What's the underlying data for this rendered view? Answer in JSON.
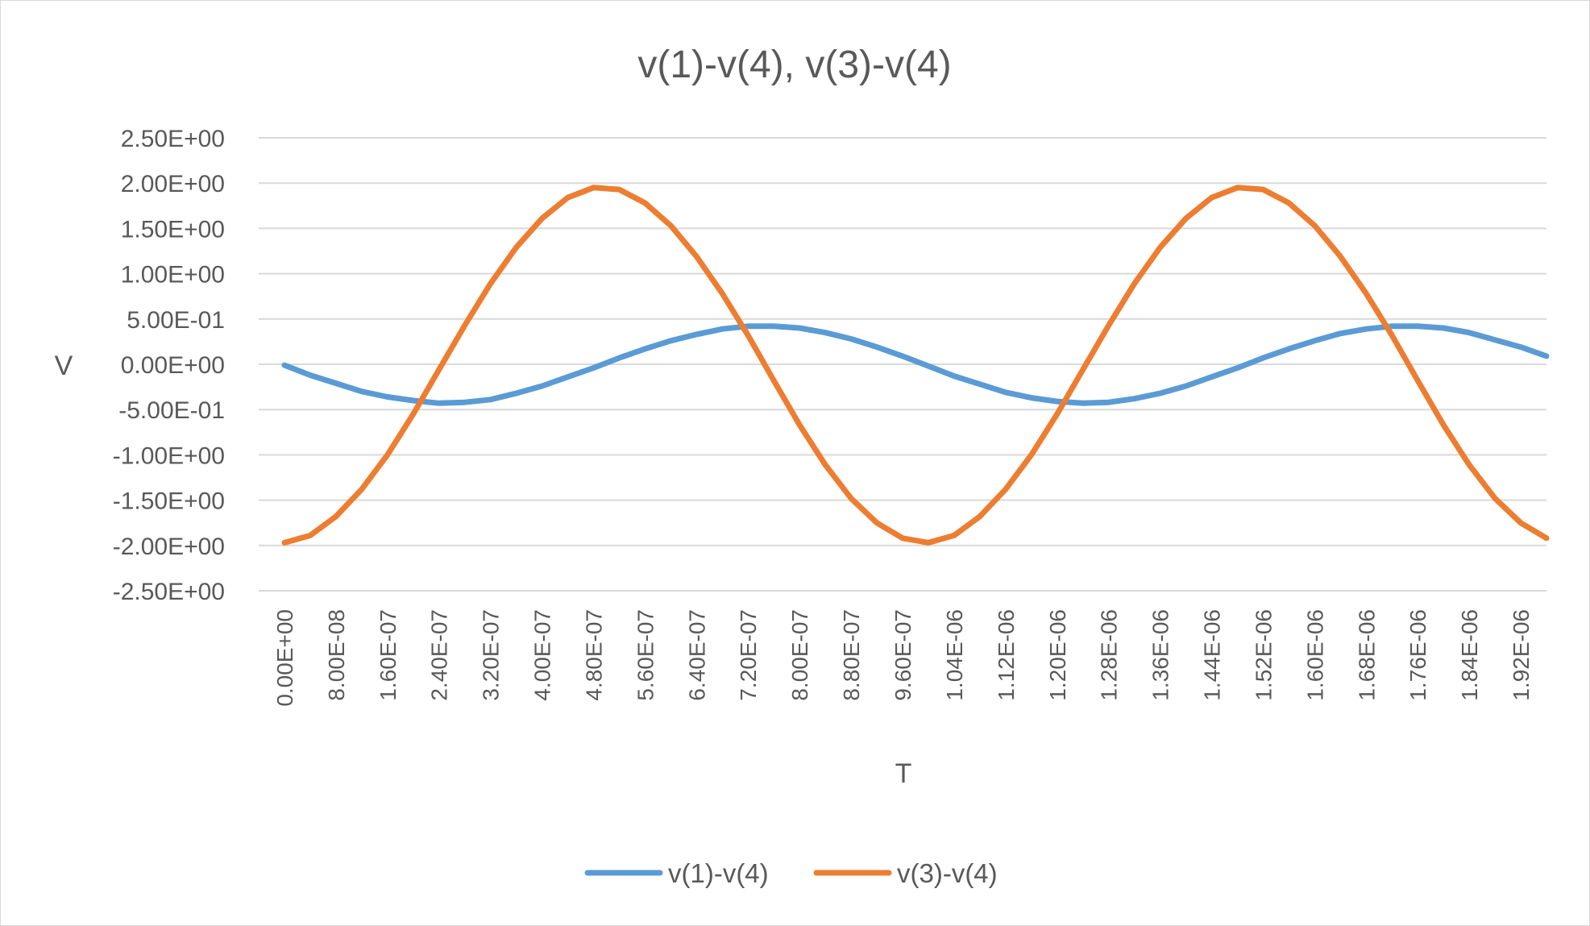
{
  "chart_data": {
    "type": "line",
    "title": "v(1)-v(4), v(3)-v(4)",
    "xlabel": "T",
    "ylabel": "V",
    "ylim": [
      -2.5,
      2.5
    ],
    "y_ticks": [
      "2.50E+00",
      "2.00E+00",
      "1.50E+00",
      "1.00E+00",
      "5.00E-01",
      "0.00E+00",
      "-5.00E-01",
      "-1.00E+00",
      "-1.50E+00",
      "-2.00E+00",
      "-2.50E+00"
    ],
    "y_tick_values": [
      2.5,
      2.0,
      1.5,
      1.0,
      0.5,
      0.0,
      -0.5,
      -1.0,
      -1.5,
      -2.0,
      -2.5
    ],
    "x_tick_labels": [
      "0.00E+00",
      "8.00E-08",
      "1.60E-07",
      "2.40E-07",
      "3.20E-07",
      "4.00E-07",
      "4.80E-07",
      "5.60E-07",
      "6.40E-07",
      "7.20E-07",
      "8.00E-07",
      "8.80E-07",
      "9.60E-07",
      "1.04E-06",
      "1.12E-06",
      "1.20E-06",
      "1.28E-06",
      "1.36E-06",
      "1.44E-06",
      "1.52E-06",
      "1.60E-06",
      "1.68E-06",
      "1.76E-06",
      "1.84E-06",
      "1.92E-06"
    ],
    "x": [
      0,
      4e-08,
      8e-08,
      1.2e-07,
      1.6e-07,
      2e-07,
      2.4e-07,
      2.8e-07,
      3.2e-07,
      3.6e-07,
      4e-07,
      4.4e-07,
      4.8e-07,
      5.2e-07,
      5.6e-07,
      6e-07,
      6.4e-07,
      6.8e-07,
      7.2e-07,
      7.6e-07,
      8e-07,
      8.4e-07,
      8.8e-07,
      9.2e-07,
      9.6e-07,
      1e-06,
      1.04e-06,
      1.08e-06,
      1.12e-06,
      1.16e-06,
      1.2e-06,
      1.24e-06,
      1.28e-06,
      1.32e-06,
      1.36e-06,
      1.4e-06,
      1.44e-06,
      1.48e-06,
      1.52e-06,
      1.56e-06,
      1.6e-06,
      1.64e-06,
      1.68e-06,
      1.72e-06,
      1.76e-06,
      1.8e-06,
      1.84e-06,
      1.88e-06,
      1.92e-06,
      1.96e-06
    ],
    "series": [
      {
        "name": "v(1)-v(4)",
        "color": "#5b9bd5",
        "values": [
          -0.01,
          -0.12,
          -0.21,
          -0.3,
          -0.36,
          -0.4,
          -0.43,
          -0.42,
          -0.39,
          -0.32,
          -0.24,
          -0.14,
          -0.04,
          0.07,
          0.17,
          0.26,
          0.33,
          0.39,
          0.42,
          0.42,
          0.4,
          0.35,
          0.28,
          0.19,
          0.09,
          -0.02,
          -0.13,
          -0.22,
          -0.31,
          -0.37,
          -0.41,
          -0.43,
          -0.42,
          -0.38,
          -0.32,
          -0.24,
          -0.14,
          -0.04,
          0.07,
          0.17,
          0.26,
          0.34,
          0.39,
          0.42,
          0.42,
          0.4,
          0.35,
          0.27,
          0.19,
          0.09
        ]
      },
      {
        "name": "v(3)-v(4)",
        "color": "#ed7d31",
        "values": [
          -1.97,
          -1.89,
          -1.68,
          -1.38,
          -1.0,
          -0.55,
          -0.06,
          0.43,
          0.89,
          1.29,
          1.61,
          1.84,
          1.95,
          1.93,
          1.78,
          1.53,
          1.19,
          0.78,
          0.32,
          -0.18,
          -0.67,
          -1.11,
          -1.48,
          -1.75,
          -1.92,
          -1.97,
          -1.89,
          -1.68,
          -1.38,
          -1.0,
          -0.55,
          -0.06,
          0.43,
          0.89,
          1.29,
          1.61,
          1.84,
          1.95,
          1.93,
          1.78,
          1.53,
          1.19,
          0.78,
          0.32,
          -0.18,
          -0.67,
          -1.11,
          -1.48,
          -1.75,
          -1.92
        ]
      }
    ],
    "legend_position": "bottom",
    "grid": true
  }
}
